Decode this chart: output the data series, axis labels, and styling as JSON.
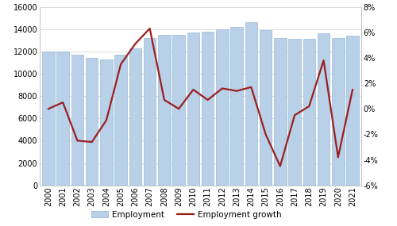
{
  "years": [
    2000,
    2001,
    2002,
    2003,
    2004,
    2005,
    2006,
    2007,
    2008,
    2009,
    2010,
    2011,
    2012,
    2013,
    2014,
    2015,
    2016,
    2017,
    2018,
    2019,
    2020,
    2021
  ],
  "employment": [
    12000,
    12000,
    11700,
    11400,
    11300,
    11700,
    12300,
    13200,
    13500,
    13500,
    13700,
    13800,
    14000,
    14200,
    14600,
    13900,
    13200,
    13100,
    13100,
    13600,
    13200,
    13400
  ],
  "growth": [
    0.0,
    0.005,
    -0.025,
    -0.026,
    -0.009,
    0.035,
    0.051,
    0.063,
    0.007,
    0.0,
    0.015,
    0.007,
    0.016,
    0.014,
    0.017,
    -0.02,
    -0.045,
    -0.005,
    0.002,
    0.038,
    -0.038,
    0.015
  ],
  "bar_color": "#b8d0e8",
  "bar_edge_color": "#8aafd0",
  "line_color": "#9b2020",
  "left_ylim": [
    0,
    16000
  ],
  "right_ylim": [
    -0.06,
    0.08
  ],
  "left_yticks": [
    0,
    2000,
    4000,
    6000,
    8000,
    10000,
    12000,
    14000,
    16000
  ],
  "right_yticks": [
    -0.06,
    -0.04,
    -0.02,
    0.0,
    0.02,
    0.04,
    0.06,
    0.08
  ],
  "right_yticklabels": [
    "-6%",
    "-4%",
    "-2%",
    "0%",
    "2%",
    "4%",
    "6%",
    "8%"
  ],
  "legend_labels": [
    "Employment",
    "Employment growth"
  ],
  "figsize": [
    5.0,
    2.85
  ],
  "dpi": 100
}
